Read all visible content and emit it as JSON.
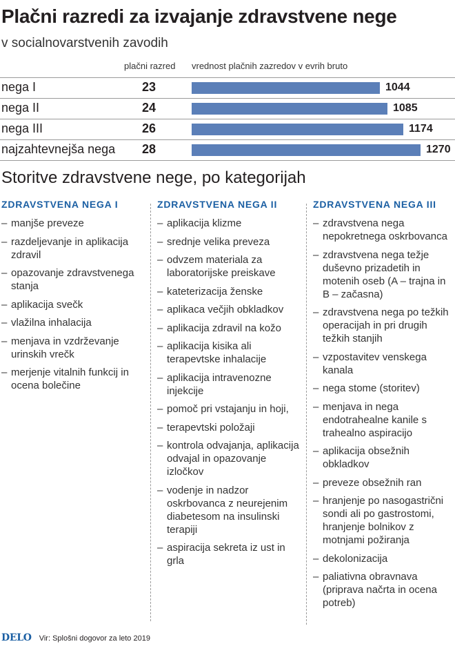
{
  "title": "Plačni razredi za izvajanje zdravstvene nege",
  "subtitle": "v socialnovarstvenih zavodih",
  "chart_data": {
    "type": "bar",
    "orientation": "horizontal",
    "title": "Plačni razredi za izvajanje zdravstvene nege",
    "subtitle": "v socialnovarstvenih zavodih",
    "categories": [
      "nega I",
      "nega II",
      "nega III",
      "najzahtevnejša nega"
    ],
    "grades_header": "plačni razred",
    "grades": [
      "23",
      "24",
      "26",
      "28"
    ],
    "values_header": "vrednost plačnih zazredov v evrih bruto",
    "values": [
      1044,
      1085,
      1174,
      1270
    ],
    "xlim": [
      0,
      1270
    ]
  },
  "services": {
    "title": "Storitve zdravstvene nege, po kategorijah",
    "categories": [
      {
        "heading": "ZDRAVSTVENA NEGA I",
        "items": [
          "manjše preveze",
          "razdeljevanje in aplikacija zdravil",
          "opazovanje zdravstvenega stanja",
          " aplikacija svečk",
          "vlažilna inhalacija",
          "menjava in vzdrževanje urinskih vrečk",
          "merjenje vitalnih funkcij in ocena bolečine"
        ]
      },
      {
        "heading": "ZDRAVSTVENA NEGA II",
        "items": [
          "aplikacija klizme",
          "srednje velika preveza",
          "odvzem materiala za laboratorijske preiskave",
          "kateterizacija ženske",
          "aplikaca večjih obkladkov",
          "aplikacija zdravil na kožo",
          "aplikacija kisika ali terapevtske inhalacije",
          "aplikacija intravenozne injekcije",
          "pomoč pri vstajanju in hoji,",
          "terapevtski položaji",
          "kontrola odvajanja, aplikacija odvajal in opazovanje izločkov",
          "vodenje in nadzor oskrbovanca z neurejenim diabetesom na insulinski terapiji",
          "aspiracija sekreta iz ust in grla"
        ]
      },
      {
        "heading": "ZDRAVSTVENA NEGA III",
        "items": [
          "zdravstvena nega nepokretnega oskrbovanca",
          "zdravstvena nega težje duševno prizadetih in motenih oseb (A – trajna in B – začasna)",
          "zdravstvena nega po težkih operacijah in pri drugih težkih stanjih",
          "vzpostavitev venskega kanala",
          "nega stome (storitev)",
          "menjava in nega endotrahealne kanile s trahealno aspiracijo",
          "aplikacija obsežnih obkladkov",
          "preveze obsežnih ran",
          "hranjenje po nasogastrični sondi ali po gastrostomi, hranjenje bolnikov z motnjami požiranja",
          "dekolonizacija",
          "paliativna obravnava (priprava načrta in ocena potreb)"
        ]
      }
    ]
  },
  "footer": {
    "logo": "DELO",
    "source": "Vir: Splošni dogovor za leto 2019"
  },
  "colors": {
    "bar": "#5b7fb8",
    "heading": "#1b5fa3",
    "text": "#231f20"
  }
}
